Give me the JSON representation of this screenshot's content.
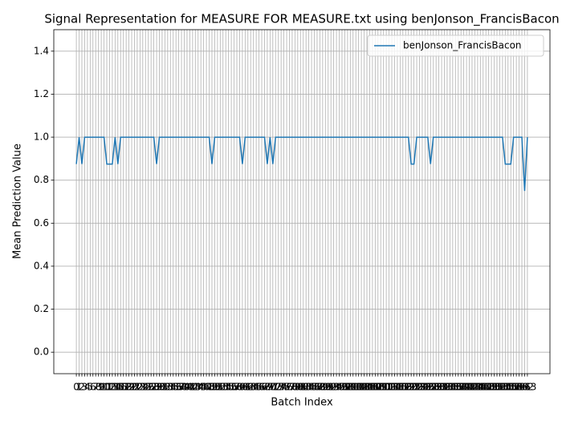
{
  "chart_data": {
    "type": "line",
    "title": "Signal Representation for MEASURE FOR MEASURE.txt using benJonson_FrancisBacon",
    "xlabel": "Batch Index",
    "ylabel": "Mean Prediction Value",
    "x": [
      0,
      1,
      2,
      3,
      4,
      5,
      6,
      7,
      8,
      9,
      10,
      11,
      12,
      13,
      14,
      15,
      16,
      17,
      18,
      19,
      20,
      21,
      22,
      23,
      24,
      25,
      26,
      27,
      28,
      29,
      30,
      31,
      32,
      33,
      34,
      35,
      36,
      37,
      38,
      39,
      40,
      41,
      42,
      43,
      44,
      45,
      46,
      47,
      48,
      49,
      50,
      51,
      52,
      53,
      54,
      55,
      56,
      57,
      58,
      59,
      60,
      61,
      62,
      63,
      64,
      65,
      66,
      67,
      68,
      69,
      70,
      71,
      72,
      73,
      74,
      75,
      76,
      77,
      78,
      79,
      80,
      81,
      82,
      83,
      84,
      85,
      86,
      87,
      88,
      89,
      90,
      91,
      92,
      93,
      94,
      95,
      96,
      97,
      98,
      99,
      100,
      101,
      102,
      103,
      104,
      105,
      106,
      107,
      108,
      109,
      110,
      111,
      112,
      113,
      114,
      115,
      116,
      117,
      118,
      119,
      120,
      121,
      122,
      123,
      124,
      125,
      126,
      127,
      128,
      129,
      130,
      131,
      132,
      133,
      134,
      135,
      136,
      137,
      138,
      139,
      140,
      141,
      142,
      143,
      144,
      145,
      146,
      147,
      148,
      149,
      150,
      151,
      152,
      153,
      154,
      155,
      156,
      157,
      158,
      159,
      160,
      161,
      162,
      163
    ],
    "series": [
      {
        "name": "benJonson_FrancisBacon",
        "color": "#1f77b4",
        "values": [
          0.875,
          1,
          0.875,
          1,
          1,
          1,
          1,
          1,
          1,
          1,
          1,
          0.875,
          0.875,
          0.875,
          1,
          0.875,
          1,
          1,
          1,
          1,
          1,
          1,
          1,
          1,
          1,
          1,
          1,
          1,
          1,
          0.875,
          1,
          1,
          1,
          1,
          1,
          1,
          1,
          1,
          1,
          1,
          1,
          1,
          1,
          1,
          1,
          1,
          1,
          1,
          1,
          0.875,
          1,
          1,
          1,
          1,
          1,
          1,
          1,
          1,
          1,
          1,
          0.875,
          1,
          1,
          1,
          1,
          1,
          1,
          1,
          1,
          0.875,
          1,
          0.875,
          1,
          1,
          1,
          1,
          1,
          1,
          1,
          1,
          1,
          1,
          1,
          1,
          1,
          1,
          1,
          1,
          1,
          1,
          1,
          1,
          1,
          1,
          1,
          1,
          1,
          1,
          1,
          1,
          1,
          1,
          1,
          1,
          1,
          1,
          1,
          1,
          1,
          1,
          1,
          1,
          1,
          1,
          1,
          1,
          1,
          1,
          1,
          1,
          1,
          0.875,
          0.875,
          1,
          1,
          1,
          1,
          1,
          0.875,
          1,
          1,
          1,
          1,
          1,
          1,
          1,
          1,
          1,
          1,
          1,
          1,
          1,
          1,
          1,
          1,
          1,
          1,
          1,
          1,
          1,
          1,
          1,
          1,
          1,
          1,
          0.875,
          0.875,
          0.875,
          1,
          1,
          1,
          1,
          0.75,
          1
        ]
      }
    ],
    "xlim": [
      -8.15,
      171.15
    ],
    "xticks": [
      0,
      1,
      2,
      3,
      4,
      5,
      6,
      7,
      8,
      9,
      10,
      11,
      12,
      13,
      14,
      15,
      16,
      17,
      18,
      19,
      20,
      21,
      22,
      23,
      24,
      25,
      26,
      27,
      28,
      29,
      30,
      31,
      32,
      33,
      34,
      35,
      36,
      37,
      38,
      39,
      40,
      41,
      42,
      43,
      44,
      45,
      46,
      47,
      48,
      49,
      50,
      51,
      52,
      53,
      54,
      55,
      56,
      57,
      58,
      59,
      60,
      61,
      62,
      63,
      64,
      65,
      66,
      67,
      68,
      69,
      70,
      71,
      72,
      73,
      74,
      75,
      76,
      77,
      78,
      79,
      80,
      81,
      82,
      83,
      84,
      85,
      86,
      87,
      88,
      89,
      90,
      91,
      92,
      93,
      94,
      95,
      96,
      97,
      98,
      99,
      100,
      101,
      102,
      103,
      104,
      105,
      106,
      107,
      108,
      109,
      110,
      111,
      112,
      113,
      114,
      115,
      116,
      117,
      118,
      119,
      120,
      121,
      122,
      123,
      124,
      125,
      126,
      127,
      128,
      129,
      130,
      131,
      132,
      133,
      134,
      135,
      136,
      137,
      138,
      139,
      140,
      141,
      142,
      143,
      144,
      145,
      146,
      147,
      148,
      149,
      150,
      151,
      152,
      153,
      154,
      155,
      156,
      157,
      158,
      159,
      160,
      161,
      162,
      163
    ],
    "ylim": [
      -0.1,
      1.5
    ],
    "yticks": [
      {
        "value": 0,
        "label": "0.0"
      },
      {
        "value": 0.2,
        "label": "0.2"
      },
      {
        "value": 0.4,
        "label": "0.4"
      },
      {
        "value": 0.6,
        "label": "0.6"
      },
      {
        "value": 0.8,
        "label": "0.8"
      },
      {
        "value": 1,
        "label": "1.0"
      },
      {
        "value": 1.2,
        "label": "1.2"
      },
      {
        "value": 1.4,
        "label": "1.4"
      }
    ],
    "grid": true,
    "legend": "upper right"
  }
}
